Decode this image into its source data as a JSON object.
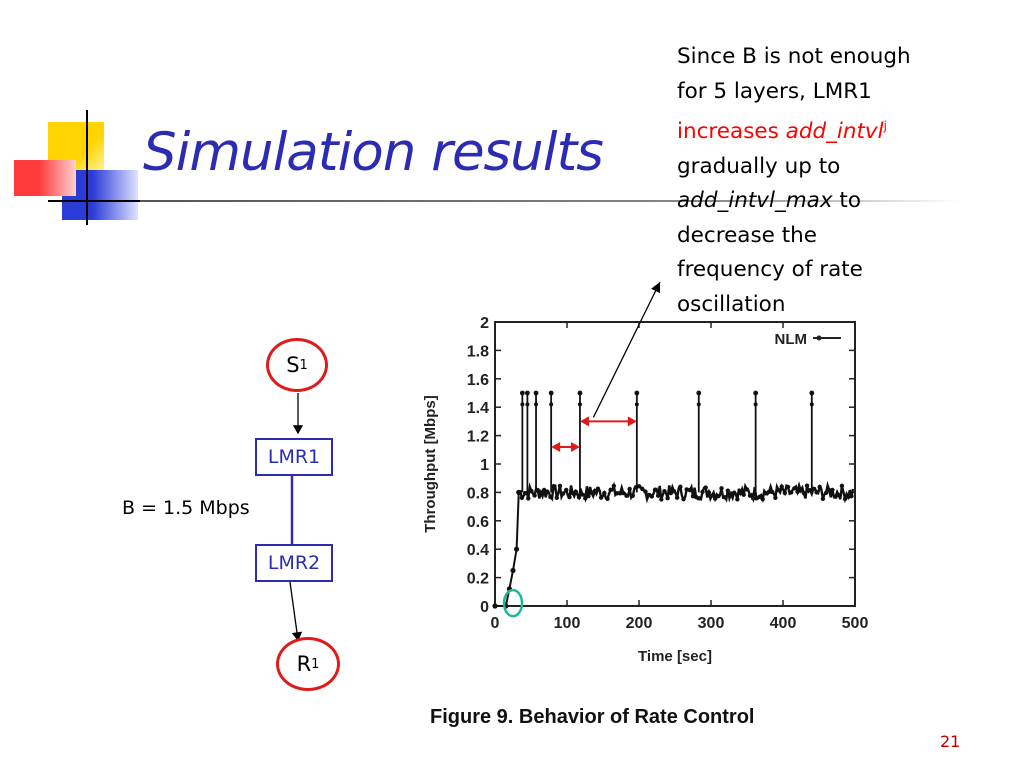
{
  "slide": {
    "title": "Simulation results",
    "page_number": "21",
    "accent_colors": {
      "blue": "#2b2bb3",
      "red": "#e01b1b",
      "yellow": "#ffd400",
      "teal": "#1fb89a"
    }
  },
  "annotation": {
    "line1": "Since B is not enough",
    "line2": "for 5 layers, LMR1",
    "increases": "increases",
    "var1": "add_intvl",
    "sup": "j",
    "line4": "gradually up to",
    "var2": "add_intvl_max",
    "to": "to",
    "line6": "decrease the",
    "line7": "frequency of rate",
    "line8": "oscillation"
  },
  "topology": {
    "source": {
      "label": "S",
      "sub": "1"
    },
    "lmr1": "LMR1",
    "lmr2": "LMR2",
    "receiver": {
      "label": "R",
      "sub": "1"
    },
    "bandwidth": "B = 1.5 Mbps"
  },
  "figure_caption": "Figure 9. Behavior of Rate Control",
  "chart_data": {
    "type": "line",
    "xlabel": "Time [sec]",
    "ylabel": "Throughput [Mbps]",
    "xlim": [
      0,
      500
    ],
    "ylim": [
      0,
      2
    ],
    "xticks": [
      "0",
      "100",
      "200",
      "300",
      "400",
      "500"
    ],
    "yticks": [
      "0",
      "0.2",
      "0.4",
      "0.6",
      "0.8",
      "1",
      "1.2",
      "1.4",
      "1.6",
      "1.8",
      "2"
    ],
    "legend": "NLM",
    "legend_position": "top-right",
    "series": [
      {
        "name": "NLM",
        "baseline": 0.8,
        "ramp": [
          [
            0,
            0
          ],
          [
            15,
            0
          ],
          [
            20,
            0.12
          ],
          [
            25,
            0.25
          ],
          [
            30,
            0.4
          ],
          [
            33,
            0.8
          ]
        ],
        "spikes": [
          {
            "x": 38,
            "y": 1.5
          },
          {
            "x": 45,
            "y": 1.5
          },
          {
            "x": 57,
            "y": 1.5
          },
          {
            "x": 78,
            "y": 1.5
          },
          {
            "x": 118,
            "y": 1.5
          },
          {
            "x": 197,
            "y": 1.5
          },
          {
            "x": 283,
            "y": 1.5
          },
          {
            "x": 362,
            "y": 1.5
          },
          {
            "x": 440,
            "y": 1.5
          }
        ]
      }
    ],
    "annotations": {
      "interval_short": [
        78,
        118
      ],
      "interval_long": [
        118,
        197
      ],
      "arrow_target_x": 118,
      "start_marker_x": 25
    }
  }
}
